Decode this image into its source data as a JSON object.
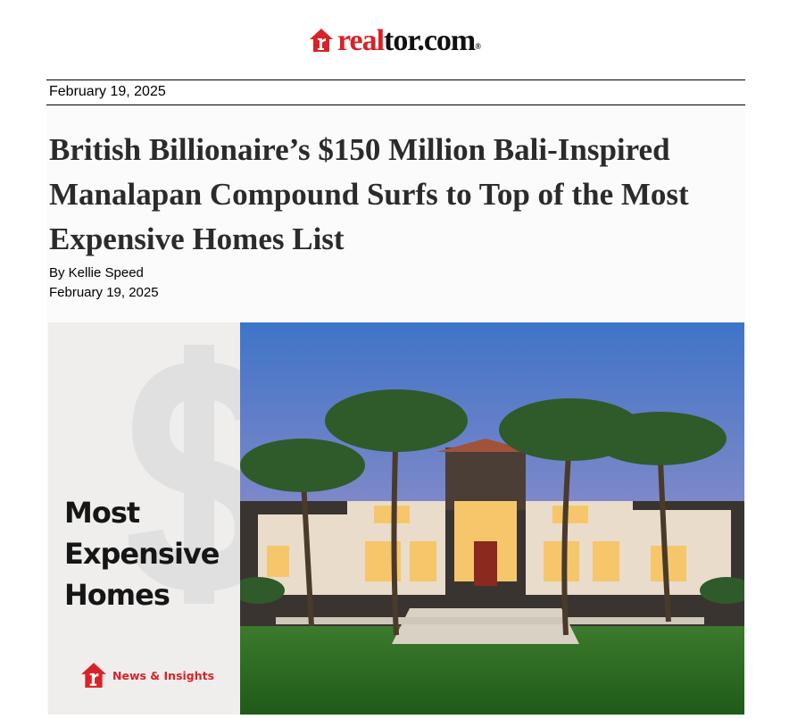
{
  "brand": {
    "logo_red": "real",
    "logo_black": "tor.com",
    "registered": "®",
    "accent": "#d92228"
  },
  "header": {
    "date": "February 19, 2025"
  },
  "article": {
    "title": "British Billionaire’s $150 Million Bali-Inspired Manalapan Compound Surfs to Top of the Most Expensive Homes List",
    "byline": "By Kellie Speed",
    "date": "February 19, 2025"
  },
  "hero": {
    "panel_lines": [
      "Most",
      "Expensive",
      "Homes"
    ],
    "badge_label": "News & Insights",
    "image": "luxury-mansion-with-palm-trees-at-dusk"
  }
}
